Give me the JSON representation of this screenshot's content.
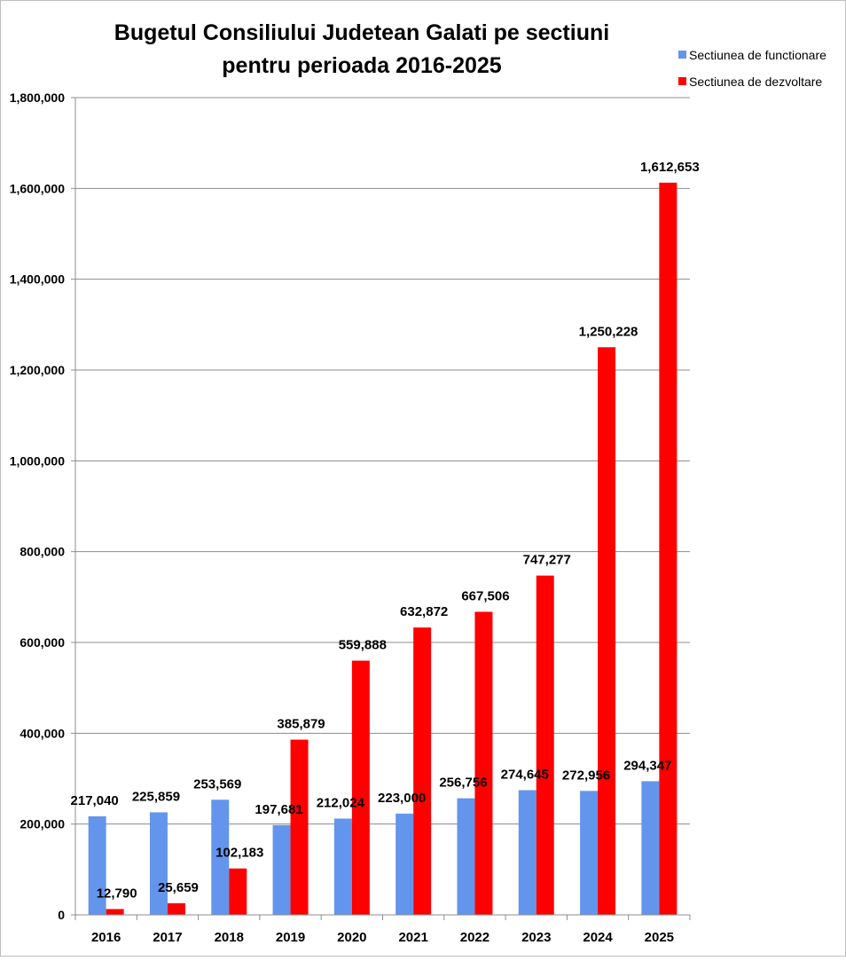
{
  "chart_data": {
    "type": "bar",
    "title_lines": [
      "Bugetul Consiliului Judetean Galati pe sectiuni",
      "pentru perioada  2016-2025"
    ],
    "categories": [
      "2016",
      "2017",
      "2018",
      "2019",
      "2020",
      "2021",
      "2022",
      "2023",
      "2024",
      "2025"
    ],
    "series": [
      {
        "name": "Sectiunea de functionare",
        "color": "#6495ED",
        "values": [
          217040,
          225859,
          253569,
          197681,
          212024,
          223000,
          256756,
          274645,
          272956,
          294347
        ],
        "labels": [
          "217,040",
          "225,859",
          "253,569",
          "197,681",
          "212,024",
          "223,000",
          "256,756",
          "274,645",
          "272,956",
          "294,347"
        ]
      },
      {
        "name": "Sectiunea de dezvoltare",
        "color": "#FF0000",
        "values": [
          12790,
          25659,
          102183,
          385879,
          559888,
          632872,
          667506,
          747277,
          1250228,
          1612653
        ],
        "labels": [
          "12,790",
          "25,659",
          "102,183",
          "385,879",
          "559,888",
          "632,872",
          "667,506",
          "747,277",
          "1,250,228",
          "1,612,653"
        ]
      }
    ],
    "yticks": [
      0,
      200000,
      400000,
      600000,
      800000,
      1000000,
      1200000,
      1400000,
      1600000,
      1800000
    ],
    "ytick_labels": [
      "0",
      "200,000",
      "400,000",
      "600,000",
      "800,000",
      "1,000,000",
      "1,200,000",
      "1,400,000",
      "1,600,000",
      "1,800,000"
    ],
    "ylim": [
      0,
      1800000
    ],
    "xlabel": "",
    "ylabel": "",
    "grid": true,
    "legend_position": "top-right"
  }
}
